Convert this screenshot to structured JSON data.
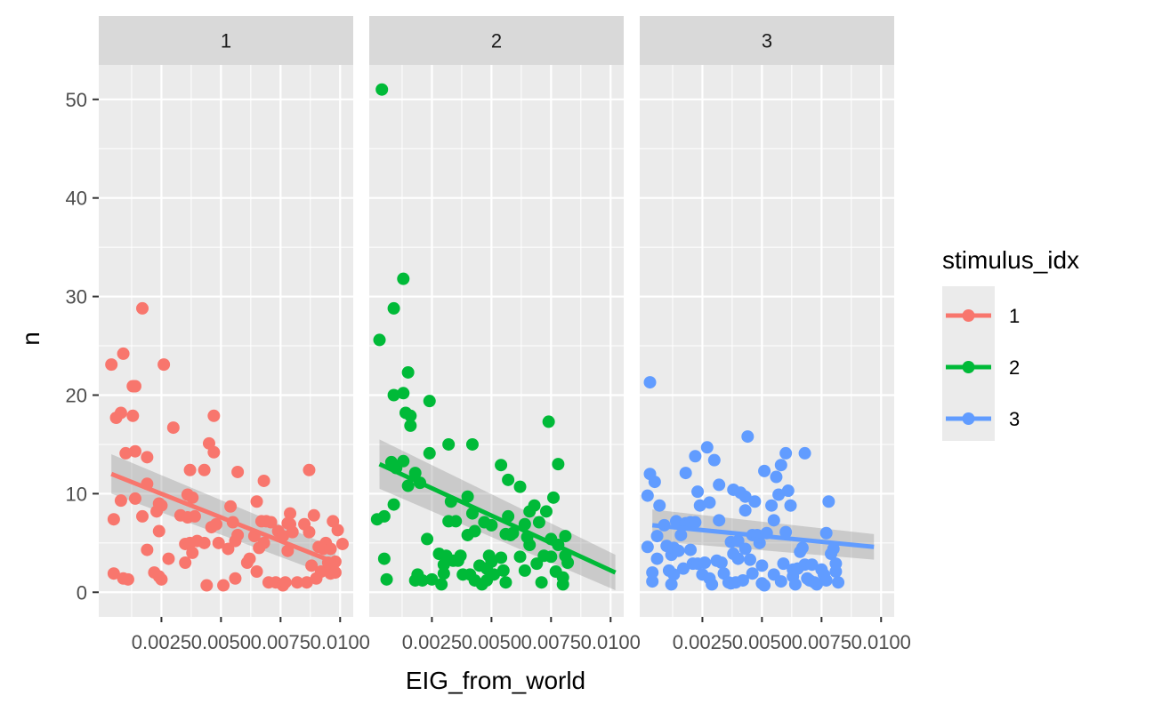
{
  "chart_data": {
    "type": "scatter",
    "facet_by": "stimulus_idx",
    "xlabel": "EIG_from_world",
    "ylabel": "n",
    "xlim": [
      -0.00013,
      0.01055
    ],
    "ylim": [
      -2.5,
      53.5
    ],
    "x_ticks": [
      0.0025,
      0.005,
      0.0075,
      0.01
    ],
    "x_tick_labels": [
      "0.0025",
      "0.0050",
      "0.0075",
      "0.0100"
    ],
    "y_ticks": [
      0,
      10,
      20,
      30,
      40,
      50
    ],
    "y_tick_labels": [
      "0",
      "10",
      "20",
      "30",
      "40",
      "50"
    ],
    "grid": true,
    "legend": {
      "title": "stimulus_idx",
      "position": "right",
      "entries": [
        "1",
        "2",
        "3"
      ]
    },
    "colors": {
      "1": "#F8766D",
      "2": "#00BA38",
      "3": "#619CFF",
      "panel_bg": "#EBEBEB",
      "strip_bg": "#D9D9D9",
      "ribbon": "#999999"
    },
    "facets": [
      {
        "label": "1",
        "color": "#F8766D",
        "fit": {
          "x": [
            0.0004,
            0.0098
          ],
          "y": [
            12.0,
            3.0
          ],
          "ci_half_width": [
            2.0,
            1.5
          ]
        },
        "points": [
          [
            0.0004,
            23.1
          ],
          [
            0.0005,
            7.4
          ],
          [
            0.0005,
            1.9
          ],
          [
            0.0006,
            17.7
          ],
          [
            0.0008,
            18.2
          ],
          [
            0.0008,
            9.3
          ],
          [
            0.0009,
            24.2
          ],
          [
            0.0009,
            1.4
          ],
          [
            0.001,
            14.1
          ],
          [
            0.0011,
            1.3
          ],
          [
            0.0013,
            20.9
          ],
          [
            0.0013,
            17.9
          ],
          [
            0.0014,
            9.5
          ],
          [
            0.0014,
            20.9
          ],
          [
            0.0014,
            14.3
          ],
          [
            0.0017,
            28.8
          ],
          [
            0.0017,
            7.7
          ],
          [
            0.0019,
            11.0
          ],
          [
            0.0019,
            13.7
          ],
          [
            0.0019,
            4.3
          ],
          [
            0.0022,
            2.0
          ],
          [
            0.0023,
            8.2
          ],
          [
            0.0024,
            9.0
          ],
          [
            0.0024,
            6.2
          ],
          [
            0.0024,
            1.6
          ],
          [
            0.0025,
            1.3
          ],
          [
            0.0025,
            8.8
          ],
          [
            0.0026,
            23.1
          ],
          [
            0.0028,
            3.4
          ],
          [
            0.003,
            16.7
          ],
          [
            0.0033,
            7.8
          ],
          [
            0.0035,
            4.9
          ],
          [
            0.0035,
            3.0
          ],
          [
            0.0036,
            9.9
          ],
          [
            0.0036,
            7.6
          ],
          [
            0.0037,
            12.4
          ],
          [
            0.0037,
            5.0
          ],
          [
            0.0038,
            4.0
          ],
          [
            0.0038,
            9.6
          ],
          [
            0.0039,
            7.7
          ],
          [
            0.004,
            5.2
          ],
          [
            0.0043,
            12.4
          ],
          [
            0.0043,
            5.0
          ],
          [
            0.0044,
            0.7
          ],
          [
            0.0045,
            15.1
          ],
          [
            0.0046,
            6.6
          ],
          [
            0.0047,
            17.9
          ],
          [
            0.0047,
            14.2
          ],
          [
            0.0048,
            6.9
          ],
          [
            0.0049,
            5.0
          ],
          [
            0.0051,
            0.7
          ],
          [
            0.0053,
            4.4
          ],
          [
            0.0054,
            8.7
          ],
          [
            0.0055,
            7.1
          ],
          [
            0.0056,
            5.2
          ],
          [
            0.0056,
            1.4
          ],
          [
            0.0057,
            12.2
          ],
          [
            0.0057,
            5.8
          ],
          [
            0.0061,
            3.0
          ],
          [
            0.0062,
            3.4
          ],
          [
            0.0064,
            5.7
          ],
          [
            0.0065,
            2.1
          ],
          [
            0.0065,
            9.2
          ],
          [
            0.0066,
            4.5
          ],
          [
            0.0067,
            7.2
          ],
          [
            0.0068,
            11.3
          ],
          [
            0.0068,
            5.0
          ],
          [
            0.0069,
            7.2
          ],
          [
            0.007,
            1.0
          ],
          [
            0.0071,
            7.1
          ],
          [
            0.0073,
            1.0
          ],
          [
            0.0074,
            6.2
          ],
          [
            0.0076,
            5.7
          ],
          [
            0.0076,
            0.7
          ],
          [
            0.0077,
            1.0
          ],
          [
            0.0078,
            4.2
          ],
          [
            0.0078,
            7.0
          ],
          [
            0.0079,
            6.9
          ],
          [
            0.0079,
            8.0
          ],
          [
            0.008,
            6.1
          ],
          [
            0.0082,
            1.0
          ],
          [
            0.0085,
            6.9
          ],
          [
            0.0086,
            1.0
          ],
          [
            0.0087,
            12.4
          ],
          [
            0.0087,
            6.1
          ],
          [
            0.0088,
            2.7
          ],
          [
            0.0089,
            7.8
          ],
          [
            0.009,
            1.4
          ],
          [
            0.0091,
            4.6
          ],
          [
            0.0092,
            2.1
          ],
          [
            0.0093,
            4.4
          ],
          [
            0.0094,
            5.0
          ],
          [
            0.0095,
            3.0
          ],
          [
            0.0096,
            1.9
          ],
          [
            0.0096,
            4.4
          ],
          [
            0.0097,
            7.2
          ],
          [
            0.0098,
            3.1
          ],
          [
            0.0098,
            2.0
          ],
          [
            0.0099,
            6.3
          ],
          [
            0.0101,
            4.9
          ]
        ]
      },
      {
        "label": "2",
        "color": "#00BA38",
        "fit": {
          "x": [
            0.0003,
            0.0102
          ],
          "y": [
            13.0,
            2.0
          ],
          "ci_half_width": [
            2.5,
            1.8
          ]
        },
        "points": [
          [
            0.0002,
            7.4
          ],
          [
            0.0003,
            25.6
          ],
          [
            0.0004,
            51.0
          ],
          [
            0.0005,
            7.7
          ],
          [
            0.0005,
            3.4
          ],
          [
            0.0006,
            1.3
          ],
          [
            0.0008,
            13.2
          ],
          [
            0.0009,
            20.0
          ],
          [
            0.0009,
            28.8
          ],
          [
            0.0009,
            8.9
          ],
          [
            0.001,
            12.6
          ],
          [
            0.0013,
            20.2
          ],
          [
            0.0013,
            13.3
          ],
          [
            0.0013,
            31.8
          ],
          [
            0.0014,
            18.2
          ],
          [
            0.0015,
            22.3
          ],
          [
            0.0015,
            10.8
          ],
          [
            0.0016,
            17.9
          ],
          [
            0.0016,
            16.9
          ],
          [
            0.0018,
            1.2
          ],
          [
            0.0018,
            12.1
          ],
          [
            0.0019,
            1.8
          ],
          [
            0.002,
            11.1
          ],
          [
            0.0021,
            1.2
          ],
          [
            0.0023,
            5.4
          ],
          [
            0.0024,
            19.4
          ],
          [
            0.0024,
            14.1
          ],
          [
            0.0025,
            1.3
          ],
          [
            0.0028,
            3.9
          ],
          [
            0.0029,
            0.8
          ],
          [
            0.003,
            2.8
          ],
          [
            0.003,
            1.9
          ],
          [
            0.0031,
            3.7
          ],
          [
            0.0032,
            7.2
          ],
          [
            0.0032,
            15.0
          ],
          [
            0.0033,
            9.2
          ],
          [
            0.0034,
            3.2
          ],
          [
            0.0035,
            7.2
          ],
          [
            0.0036,
            3.2
          ],
          [
            0.0037,
            3.7
          ],
          [
            0.0038,
            1.8
          ],
          [
            0.004,
            9.7
          ],
          [
            0.004,
            5.8
          ],
          [
            0.0041,
            1.8
          ],
          [
            0.0042,
            8.0
          ],
          [
            0.0042,
            15.0
          ],
          [
            0.0043,
            6.2
          ],
          [
            0.0043,
            1.2
          ],
          [
            0.0045,
            2.7
          ],
          [
            0.0046,
            0.8
          ],
          [
            0.0047,
            7.1
          ],
          [
            0.0048,
            2.4
          ],
          [
            0.0048,
            1.2
          ],
          [
            0.0049,
            3.7
          ],
          [
            0.005,
            6.8
          ],
          [
            0.005,
            3.1
          ],
          [
            0.0051,
            1.8
          ],
          [
            0.0054,
            3.5
          ],
          [
            0.0054,
            12.9
          ],
          [
            0.0055,
            2.2
          ],
          [
            0.0056,
            1.0
          ],
          [
            0.0056,
            5.9
          ],
          [
            0.0057,
            11.4
          ],
          [
            0.0057,
            7.7
          ],
          [
            0.0058,
            5.8
          ],
          [
            0.0059,
            6.0
          ],
          [
            0.0062,
            10.7
          ],
          [
            0.0062,
            3.6
          ],
          [
            0.0064,
            6.9
          ],
          [
            0.0064,
            2.2
          ],
          [
            0.0065,
            5.6
          ],
          [
            0.0066,
            4.8
          ],
          [
            0.0066,
            8.2
          ],
          [
            0.0068,
            8.8
          ],
          [
            0.0069,
            2.9
          ],
          [
            0.007,
            7.1
          ],
          [
            0.0071,
            1.0
          ],
          [
            0.0072,
            3.7
          ],
          [
            0.0073,
            8.2
          ],
          [
            0.0074,
            17.3
          ],
          [
            0.0075,
            3.6
          ],
          [
            0.0075,
            5.4
          ],
          [
            0.0076,
            9.6
          ],
          [
            0.0077,
            2.1
          ],
          [
            0.0078,
            13.0
          ],
          [
            0.0078,
            4.8
          ],
          [
            0.008,
            1.5
          ],
          [
            0.008,
            0.8
          ],
          [
            0.0081,
            3.7
          ],
          [
            0.0081,
            5.7
          ],
          [
            0.0082,
            3.0
          ]
        ]
      },
      {
        "label": "3",
        "color": "#619CFF",
        "fit": {
          "x": [
            0.0004,
            0.0097
          ],
          "y": [
            6.8,
            4.6
          ],
          "ci_half_width": [
            1.6,
            1.3
          ]
        },
        "points": [
          [
            0.0002,
            9.8
          ],
          [
            0.0002,
            4.6
          ],
          [
            0.0003,
            21.3
          ],
          [
            0.0003,
            12.0
          ],
          [
            0.0004,
            2.0
          ],
          [
            0.0004,
            1.1
          ],
          [
            0.0005,
            11.2
          ],
          [
            0.0006,
            3.4
          ],
          [
            0.0006,
            5.7
          ],
          [
            0.0007,
            8.8
          ],
          [
            0.0009,
            6.8
          ],
          [
            0.001,
            4.7
          ],
          [
            0.0011,
            2.2
          ],
          [
            0.0012,
            3.8
          ],
          [
            0.0012,
            0.8
          ],
          [
            0.0013,
            4.5
          ],
          [
            0.0013,
            1.8
          ],
          [
            0.0014,
            7.2
          ],
          [
            0.0015,
            4.2
          ],
          [
            0.0016,
            5.8
          ],
          [
            0.0017,
            2.4
          ],
          [
            0.0018,
            12.1
          ],
          [
            0.0018,
            7.0
          ],
          [
            0.002,
            7.1
          ],
          [
            0.002,
            4.3
          ],
          [
            0.0021,
            2.9
          ],
          [
            0.0022,
            13.8
          ],
          [
            0.0022,
            7.1
          ],
          [
            0.0023,
            2.9
          ],
          [
            0.0023,
            10.2
          ],
          [
            0.0024,
            8.8
          ],
          [
            0.0025,
            1.8
          ],
          [
            0.0026,
            3.0
          ],
          [
            0.0027,
            14.7
          ],
          [
            0.0028,
            9.1
          ],
          [
            0.0028,
            1.4
          ],
          [
            0.0029,
            0.8
          ],
          [
            0.003,
            13.4
          ],
          [
            0.0031,
            3.2
          ],
          [
            0.0032,
            10.9
          ],
          [
            0.0032,
            7.3
          ],
          [
            0.0033,
            3.0
          ],
          [
            0.0034,
            1.9
          ],
          [
            0.0036,
            1.0
          ],
          [
            0.0037,
            5.1
          ],
          [
            0.0037,
            0.9
          ],
          [
            0.0038,
            3.9
          ],
          [
            0.0038,
            10.4
          ],
          [
            0.0039,
            1.0
          ],
          [
            0.004,
            5.2
          ],
          [
            0.004,
            3.4
          ],
          [
            0.0041,
            10.1
          ],
          [
            0.0042,
            1.2
          ],
          [
            0.0043,
            9.7
          ],
          [
            0.0043,
            4.4
          ],
          [
            0.0043,
            8.3
          ],
          [
            0.0044,
            15.8
          ],
          [
            0.0045,
            3.3
          ],
          [
            0.0046,
            5.8
          ],
          [
            0.0046,
            1.9
          ],
          [
            0.0047,
            9.2
          ],
          [
            0.0048,
            5.8
          ],
          [
            0.0049,
            5.0
          ],
          [
            0.005,
            2.7
          ],
          [
            0.005,
            0.9
          ],
          [
            0.0051,
            12.3
          ],
          [
            0.0051,
            0.7
          ],
          [
            0.0052,
            6.0
          ],
          [
            0.0054,
            8.8
          ],
          [
            0.0055,
            1.8
          ],
          [
            0.0055,
            7.3
          ],
          [
            0.0056,
            11.7
          ],
          [
            0.0057,
            9.9
          ],
          [
            0.0058,
            1.1
          ],
          [
            0.0058,
            12.9
          ],
          [
            0.0059,
            2.9
          ],
          [
            0.006,
            6.1
          ],
          [
            0.006,
            14.1
          ],
          [
            0.0061,
            10.3
          ],
          [
            0.0062,
            8.8
          ],
          [
            0.0063,
            1.6
          ],
          [
            0.0063,
            2.3
          ],
          [
            0.0064,
            0.8
          ],
          [
            0.0065,
            2.4
          ],
          [
            0.0066,
            4.1
          ],
          [
            0.0067,
            4.5
          ],
          [
            0.0068,
            2.8
          ],
          [
            0.0068,
            14.1
          ],
          [
            0.0069,
            1.4
          ],
          [
            0.007,
            1.2
          ],
          [
            0.0071,
            2.8
          ],
          [
            0.0072,
            1.0
          ],
          [
            0.0073,
            0.8
          ],
          [
            0.0075,
            2.3
          ],
          [
            0.0076,
            1.8
          ],
          [
            0.0077,
            6.0
          ],
          [
            0.0077,
            1.2
          ],
          [
            0.0078,
            9.2
          ],
          [
            0.0079,
            3.9
          ],
          [
            0.008,
            4.4
          ],
          [
            0.0081,
            2.1
          ],
          [
            0.0081,
            2.9
          ],
          [
            0.0082,
            1.0
          ]
        ]
      }
    ]
  }
}
